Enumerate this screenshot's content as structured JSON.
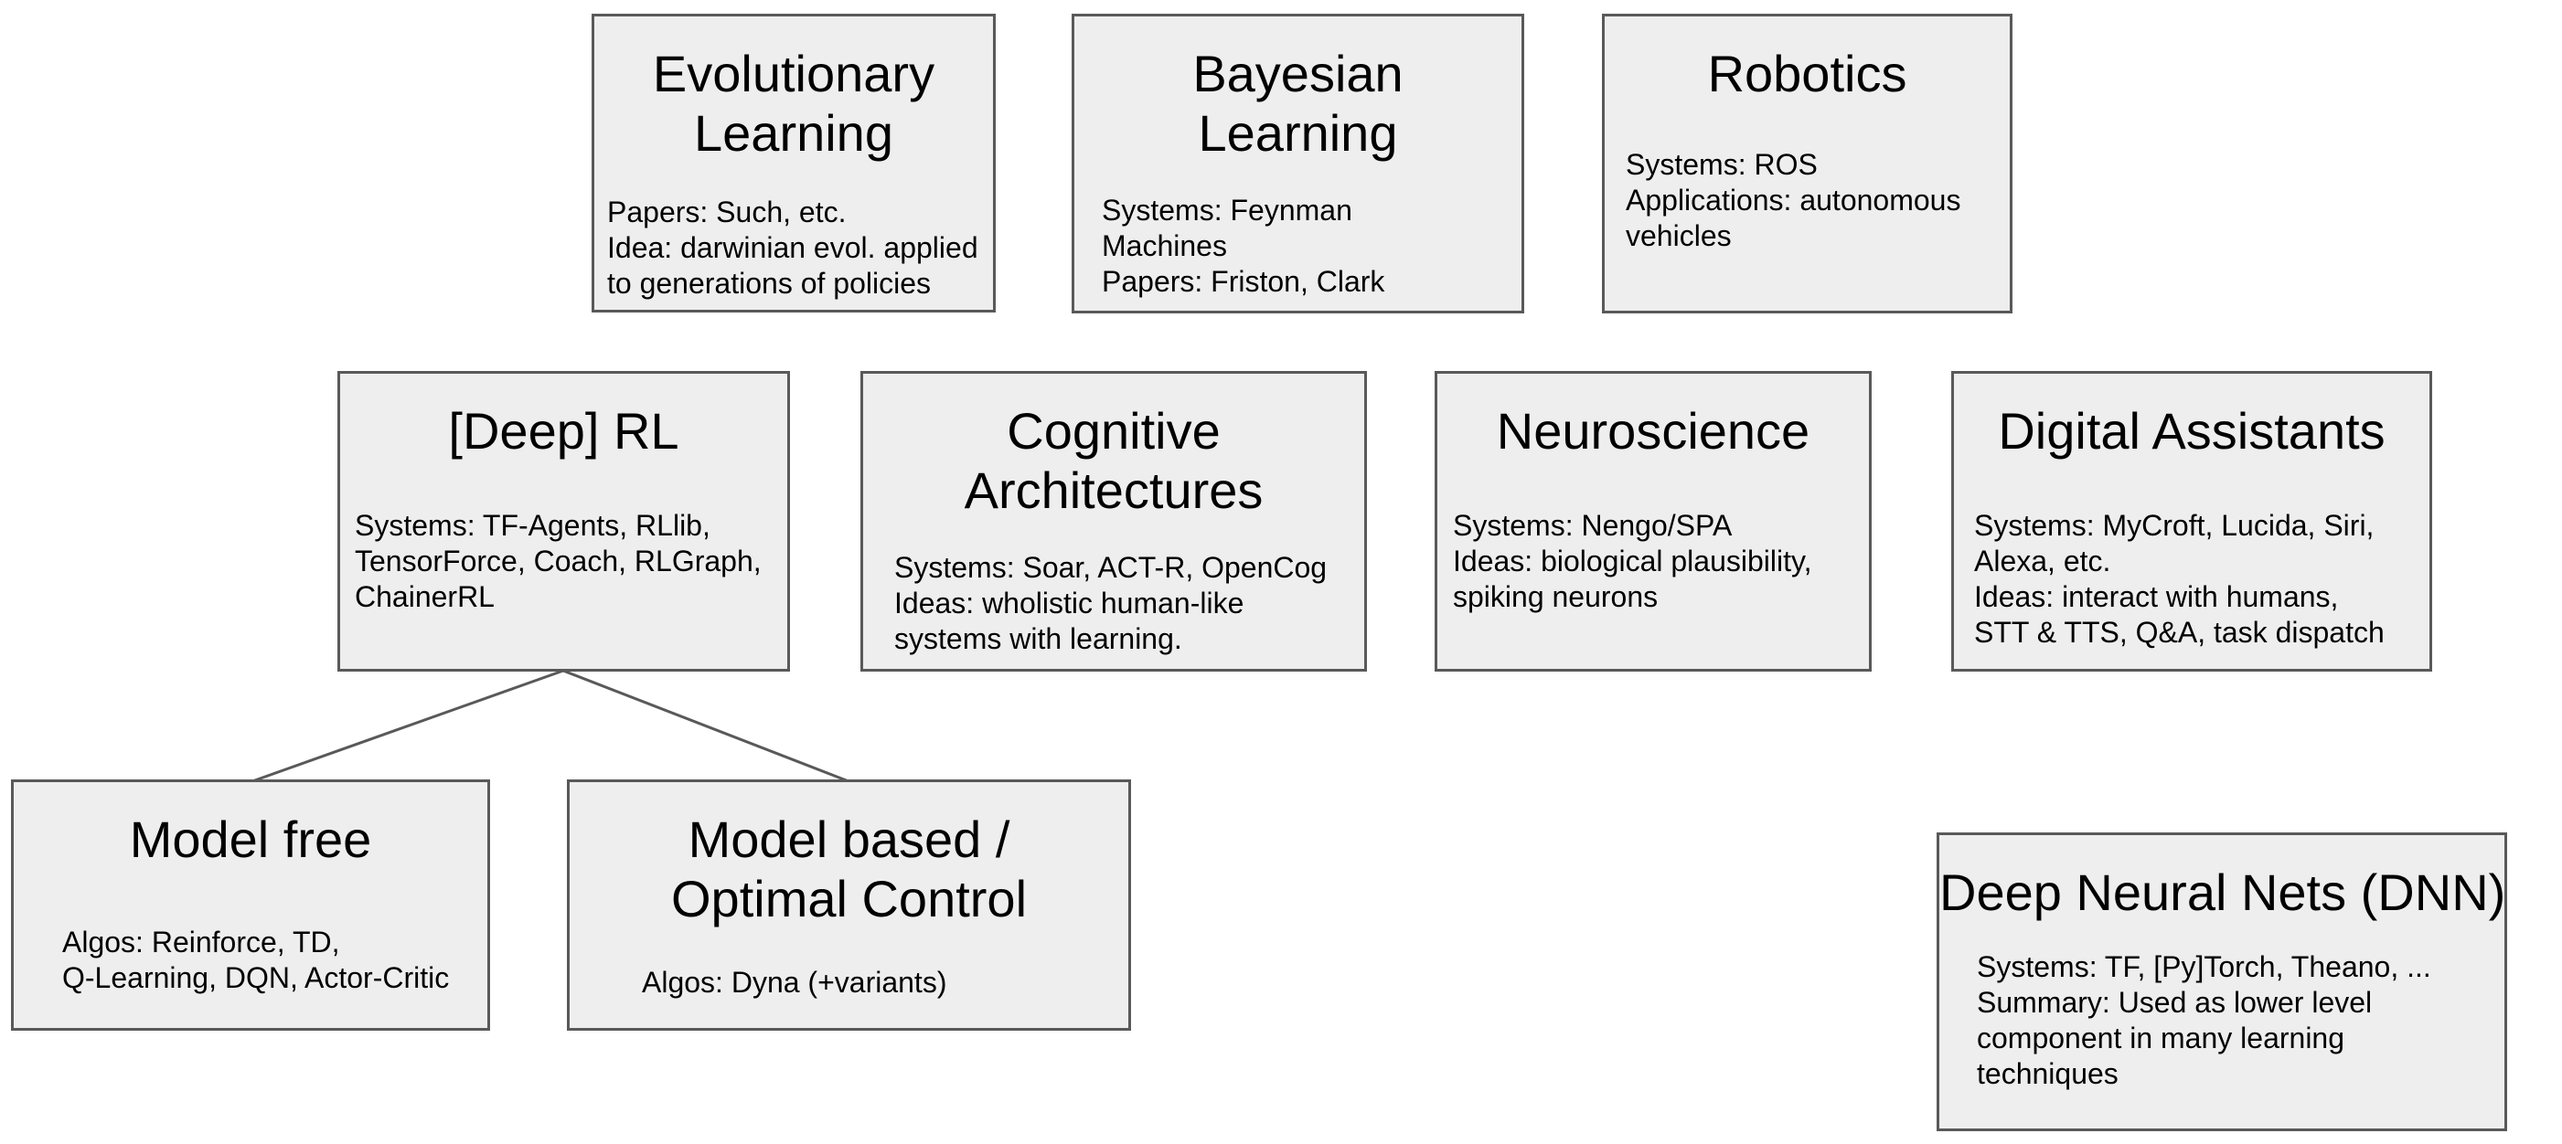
{
  "diagram": {
    "edges": [
      {
        "from": "deep-rl",
        "to": "model-free"
      },
      {
        "from": "deep-rl",
        "to": "model-based"
      }
    ],
    "nodes": {
      "evolutionary": {
        "title": [
          "Evolutionary",
          "Learning"
        ],
        "desc": [
          "Papers: Such, etc.",
          "Idea: darwinian evol. applied",
          "to generations of policies"
        ]
      },
      "bayesian": {
        "title": [
          "Bayesian",
          "Learning"
        ],
        "desc": [
          "Systems: Feynman",
          "Machines",
          "Papers: Friston, Clark"
        ]
      },
      "robotics": {
        "title": [
          "Robotics"
        ],
        "desc": [
          "Systems: ROS",
          "Applications: autonomous",
          "vehicles"
        ]
      },
      "deep_rl": {
        "title": [
          "[Deep] RL"
        ],
        "desc": [
          "Systems: TF-Agents, RLlib,",
          "TensorForce,  Coach, RLGraph,",
          "ChainerRL"
        ]
      },
      "cognitive": {
        "title": [
          "Cognitive",
          "Architectures"
        ],
        "desc": [
          "Systems: Soar, ACT-R, OpenCog",
          "Ideas: wholistic human-like",
          "systems with learning."
        ]
      },
      "neuroscience": {
        "title": [
          "Neuroscience"
        ],
        "desc": [
          "Systems: Nengo/SPA",
          "Ideas: biological plausibility,",
          "spiking neurons"
        ]
      },
      "digital_assistants": {
        "title": [
          "Digital Assistants"
        ],
        "desc": [
          "Systems: MyCroft, Lucida, Siri,",
          "Alexa, etc.",
          "Ideas: interact with humans,",
          "STT & TTS, Q&A, task dispatch"
        ]
      },
      "model_free": {
        "title": [
          "Model free"
        ],
        "desc": [
          "Algos: Reinforce, TD,",
          "Q-Learning, DQN, Actor-Critic"
        ]
      },
      "model_based": {
        "title": [
          "Model based /",
          "Optimal Control"
        ],
        "desc": [
          "Algos: Dyna (+variants)"
        ]
      },
      "dnn": {
        "title": [
          "Deep Neural Nets (DNN)"
        ],
        "desc": [
          "Systems: TF,  [Py]Torch,  Theano, ...",
          "Summary: Used as lower level",
          "component in many learning",
          "techniques"
        ]
      }
    }
  }
}
